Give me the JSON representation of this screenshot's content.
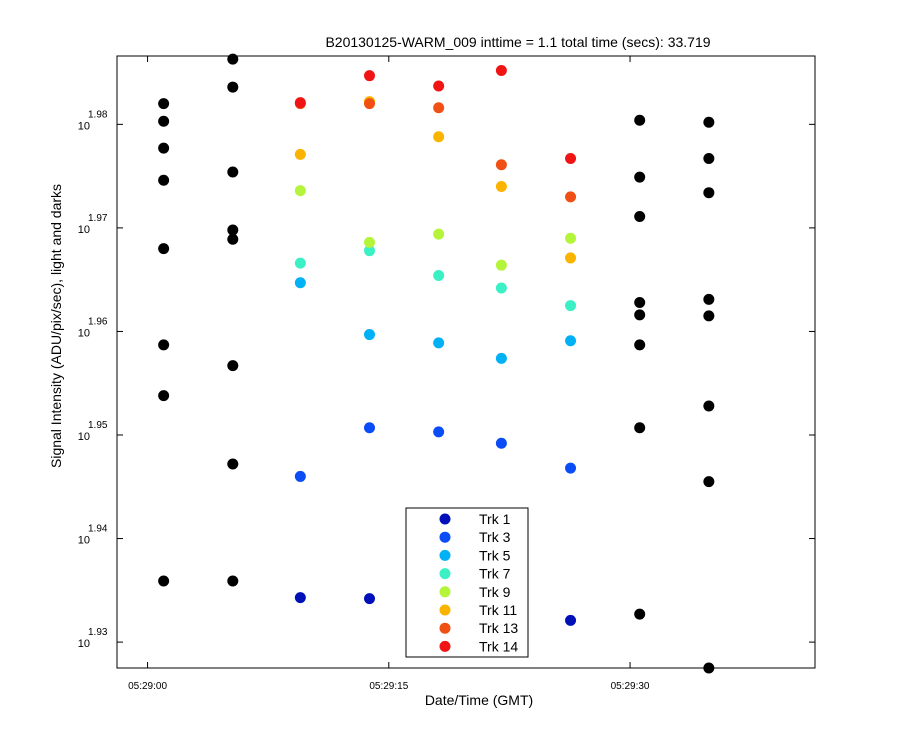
{
  "chart_data": {
    "type": "scatter",
    "title": "B20130125-WARM_009 inttime = 1.1 total time (secs): 33.719",
    "xlabel": "Date/Time (GMT)",
    "ylabel": "Signal Intensity (ADU/pix/sec), light and darks",
    "x_units": "seconds after 05:29:00",
    "xlim": [
      -1.9,
      41.5
    ],
    "ylim": [
      1.9275,
      1.9866
    ],
    "x_ticks": [
      {
        "value": 0,
        "label": "05:29:00"
      },
      {
        "value": 15,
        "label": "05:29:15"
      },
      {
        "value": 30,
        "label": "05:29:30"
      }
    ],
    "y_ticks": [
      {
        "value": 1.93,
        "base": "10",
        "exponent": "1.93"
      },
      {
        "value": 1.94,
        "base": "10",
        "exponent": "1.94"
      },
      {
        "value": 1.95,
        "base": "10",
        "exponent": "1.95"
      },
      {
        "value": 1.96,
        "base": "10",
        "exponent": "1.96"
      },
      {
        "value": 1.97,
        "base": "10",
        "exponent": "1.97"
      },
      {
        "value": 1.98,
        "base": "10",
        "exponent": "1.98"
      }
    ],
    "series": [
      {
        "name": "darks",
        "legend": false,
        "color": "#000000",
        "points": [
          {
            "x": 1.0,
            "y": 1.982
          },
          {
            "x": 1.0,
            "y": 1.9803
          },
          {
            "x": 1.0,
            "y": 1.9777
          },
          {
            "x": 1.0,
            "y": 1.9746
          },
          {
            "x": 1.0,
            "y": 1.968
          },
          {
            "x": 1.0,
            "y": 1.9587
          },
          {
            "x": 1.0,
            "y": 1.9538
          },
          {
            "x": 1.0,
            "y": 1.9359
          },
          {
            "x": 5.3,
            "y": 1.9863
          },
          {
            "x": 5.3,
            "y": 1.9836
          },
          {
            "x": 5.3,
            "y": 1.9754
          },
          {
            "x": 5.3,
            "y": 1.9698
          },
          {
            "x": 5.3,
            "y": 1.9689
          },
          {
            "x": 5.3,
            "y": 1.9567
          },
          {
            "x": 5.3,
            "y": 1.9472
          },
          {
            "x": 5.3,
            "y": 1.9359
          },
          {
            "x": 30.6,
            "y": 1.9804
          },
          {
            "x": 30.6,
            "y": 1.9749
          },
          {
            "x": 30.6,
            "y": 1.9711
          },
          {
            "x": 30.6,
            "y": 1.9628
          },
          {
            "x": 30.6,
            "y": 1.9616
          },
          {
            "x": 30.6,
            "y": 1.9587
          },
          {
            "x": 30.6,
            "y": 1.9507
          },
          {
            "x": 30.6,
            "y": 1.9327
          },
          {
            "x": 34.9,
            "y": 1.9802
          },
          {
            "x": 34.9,
            "y": 1.9767
          },
          {
            "x": 34.9,
            "y": 1.9734
          },
          {
            "x": 34.9,
            "y": 1.9631
          },
          {
            "x": 34.9,
            "y": 1.9615
          },
          {
            "x": 34.9,
            "y": 1.9528
          },
          {
            "x": 34.9,
            "y": 1.9455
          },
          {
            "x": 34.9,
            "y": 1.9275
          }
        ]
      },
      {
        "name": "Trk 1",
        "color": "#0010b8",
        "points": [
          {
            "x": 9.5,
            "y": 1.9343
          },
          {
            "x": 13.8,
            "y": 1.9342
          },
          {
            "x": 26.3,
            "y": 1.9321
          }
        ]
      },
      {
        "name": "Trk 3",
        "color": "#0a4cf5",
        "points": [
          {
            "x": 9.5,
            "y": 1.946
          },
          {
            "x": 13.8,
            "y": 1.9507
          },
          {
            "x": 18.1,
            "y": 1.9503
          },
          {
            "x": 22.0,
            "y": 1.9492
          },
          {
            "x": 26.3,
            "y": 1.9468
          }
        ]
      },
      {
        "name": "Trk 5",
        "color": "#00b2f5",
        "points": [
          {
            "x": 9.5,
            "y": 1.9647
          },
          {
            "x": 13.8,
            "y": 1.9597
          },
          {
            "x": 18.1,
            "y": 1.9589
          },
          {
            "x": 22.0,
            "y": 1.9574
          },
          {
            "x": 26.3,
            "y": 1.9591
          }
        ]
      },
      {
        "name": "Trk 7",
        "color": "#3cf0c6",
        "points": [
          {
            "x": 9.5,
            "y": 1.9666
          },
          {
            "x": 13.8,
            "y": 1.9678
          },
          {
            "x": 18.1,
            "y": 1.9654
          },
          {
            "x": 22.0,
            "y": 1.9642
          },
          {
            "x": 26.3,
            "y": 1.9625
          }
        ]
      },
      {
        "name": "Trk 9",
        "color": "#b4f53c",
        "points": [
          {
            "x": 9.5,
            "y": 1.9736
          },
          {
            "x": 13.8,
            "y": 1.9686
          },
          {
            "x": 18.1,
            "y": 1.9694
          },
          {
            "x": 22.0,
            "y": 1.9664
          },
          {
            "x": 26.3,
            "y": 1.969
          }
        ]
      },
      {
        "name": "Trk 11",
        "color": "#fab400",
        "points": [
          {
            "x": 9.5,
            "y": 1.9771
          },
          {
            "x": 13.8,
            "y": 1.9822
          },
          {
            "x": 18.1,
            "y": 1.9788
          },
          {
            "x": 22.0,
            "y": 1.974
          },
          {
            "x": 26.3,
            "y": 1.9671
          }
        ]
      },
      {
        "name": "Trk 13",
        "color": "#f05014",
        "points": [
          {
            "x": 9.5,
            "y": 1.982
          },
          {
            "x": 13.8,
            "y": 1.982
          },
          {
            "x": 18.1,
            "y": 1.9816
          },
          {
            "x": 22.0,
            "y": 1.9761
          },
          {
            "x": 26.3,
            "y": 1.973
          }
        ]
      },
      {
        "name": "Trk 14",
        "color": "#f01414",
        "points": [
          {
            "x": 9.5,
            "y": 1.9821
          },
          {
            "x": 13.8,
            "y": 1.9847
          },
          {
            "x": 18.1,
            "y": 1.9837
          },
          {
            "x": 22.0,
            "y": 1.9852
          },
          {
            "x": 26.3,
            "y": 1.9767
          }
        ]
      }
    ],
    "legend_placement": "bottom-center"
  }
}
